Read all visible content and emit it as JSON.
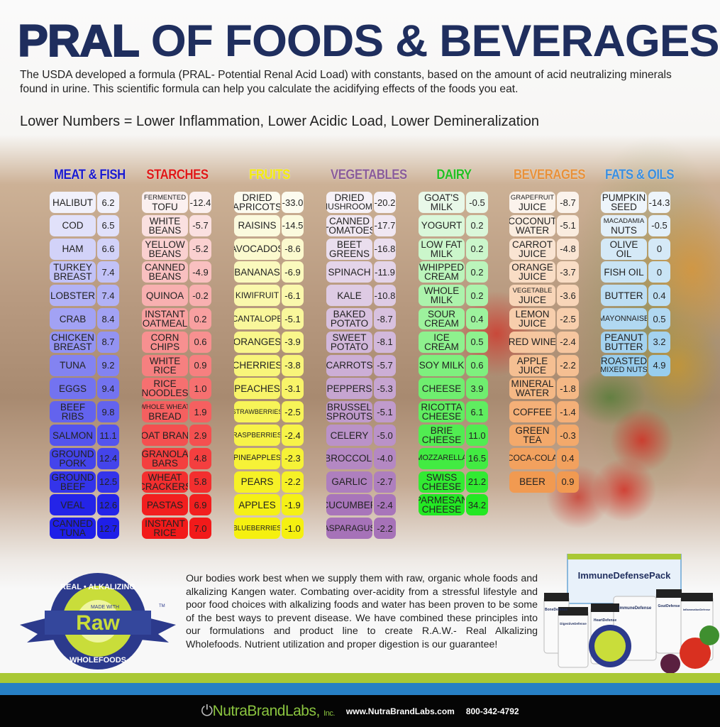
{
  "header": {
    "title_bold": "PRAL",
    "title_rest": "OF FOODS & BEVERAGES",
    "intro": "The USDA developed a formula (PRAL- Potential Renal Acid Load) with constants, based on the amount of acid neutralizing minerals found in urine. This scientific formula can help you calculate the acidifying effects of the foods you eat.",
    "tagline": "Lower Numbers = Lower Inflammation, Lower Acidic Load, Lower Demineralization"
  },
  "columns": [
    {
      "title": "MEAT & FISH",
      "title_color": "#1a1ad0",
      "light": "#f1f1fb",
      "dark": "#1f1fe8",
      "items": [
        {
          "name": "HALIBUT",
          "value": "6.2"
        },
        {
          "name": "COD",
          "value": "6.5"
        },
        {
          "name": "HAM",
          "value": "6.6"
        },
        {
          "name": "TURKEY\nBREAST",
          "value": "7.4"
        },
        {
          "name": "LOBSTER",
          "value": "7.4"
        },
        {
          "name": "CRAB",
          "value": "8.4"
        },
        {
          "name": "CHICKEN\nBREAST",
          "value": "8.7"
        },
        {
          "name": "TUNA",
          "value": "9.2"
        },
        {
          "name": "EGGS",
          "value": "9.4"
        },
        {
          "name": "BEEF\nRIBS",
          "value": "9.8"
        },
        {
          "name": "SALMON",
          "value": "11.1"
        },
        {
          "name": "GROUND\nPORK",
          "value": "12.4"
        },
        {
          "name": "GROUND\nBEEF",
          "value": "12.5"
        },
        {
          "name": "VEAL",
          "value": "12.6"
        },
        {
          "name": "CANNED\nTUNA",
          "value": "12.7"
        }
      ]
    },
    {
      "title": "STARCHES",
      "title_color": "#e01818",
      "light": "#fbf0f0",
      "dark": "#f21a1a",
      "items": [
        {
          "name": "FERMENTED\nTOFU",
          "value": "-12.4"
        },
        {
          "name": "WHITE\nBEANS",
          "value": "-5.7"
        },
        {
          "name": "YELLOW\nBEANS",
          "value": "-5.2"
        },
        {
          "name": "CANNED\nBEANS",
          "value": "-4.9"
        },
        {
          "name": "QUINOA",
          "value": "-0.2"
        },
        {
          "name": "INSTANT\nOATMEAL",
          "value": "0.2"
        },
        {
          "name": "CORN\nCHIPS",
          "value": "0.6"
        },
        {
          "name": "WHITE\nRICE",
          "value": "0.9"
        },
        {
          "name": "RICE\nNOODLES",
          "value": "1.0"
        },
        {
          "name": "WHOLE WHEAT\nBREAD",
          "value": "1.9"
        },
        {
          "name": "OAT BRAN",
          "value": "2.9"
        },
        {
          "name": "GRANOLA\nBARS",
          "value": "4.8"
        },
        {
          "name": "WHEAT\nCRACKERS",
          "value": "5.8"
        },
        {
          "name": "PASTAS",
          "value": "6.9"
        },
        {
          "name": "INSTANT\nRICE",
          "value": "7.0"
        }
      ]
    },
    {
      "title": "FRUITS",
      "title_color": "#f2ea10",
      "light": "#fcfbef",
      "dark": "#f5f010",
      "items": [
        {
          "name": "DRIED\nAPRICOTS",
          "value": "-33.0"
        },
        {
          "name": "RAISINS",
          "value": "-14.5"
        },
        {
          "name": "AVOCADOS",
          "value": "-8.6"
        },
        {
          "name": "BANANAS",
          "value": "-6.9"
        },
        {
          "name": "KIWIFRUIT",
          "value": "-6.1"
        },
        {
          "name": "CANTALOPE",
          "value": "-5.1"
        },
        {
          "name": "ORANGES",
          "value": "-3.9"
        },
        {
          "name": "CHERRIES",
          "value": "-3.8"
        },
        {
          "name": "PEACHES",
          "value": "-3.1"
        },
        {
          "name": "STRAWBERRIES",
          "value": "-2.5"
        },
        {
          "name": "RASPBERRIES",
          "value": "-2.4"
        },
        {
          "name": "PINEAPPLES",
          "value": "-2.3"
        },
        {
          "name": "PEARS",
          "value": "-2.2"
        },
        {
          "name": "APPLES",
          "value": "-1.9"
        },
        {
          "name": "BLUEBERRIES",
          "value": "-1.0"
        }
      ]
    },
    {
      "title": "VEGETABLES",
      "title_color": "#8a5c9a",
      "light": "#f6f1f7",
      "dark": "#a672b8",
      "items": [
        {
          "name": "DRIED\nMUSHROOMS",
          "value": "-20.2"
        },
        {
          "name": "CANNED\nTOMATOES",
          "value": "-17.7"
        },
        {
          "name": "BEET\nGREENS",
          "value": "-16.8"
        },
        {
          "name": "SPINACH",
          "value": "-11.9"
        },
        {
          "name": "KALE",
          "value": "-10.8"
        },
        {
          "name": "BAKED\nPOTATO",
          "value": "-8.7"
        },
        {
          "name": "SWEET\nPOTATO",
          "value": "-8.1"
        },
        {
          "name": "CARROTS",
          "value": "-5.7"
        },
        {
          "name": "PEPPERS",
          "value": "-5.3"
        },
        {
          "name": "BRUSSEL\nSPROUTS",
          "value": "-5.1"
        },
        {
          "name": "CELERY",
          "value": "-5.0"
        },
        {
          "name": "BROCCOLI",
          "value": "-4.0"
        },
        {
          "name": "GARLIC",
          "value": "-2.7"
        },
        {
          "name": "CUCUMBER",
          "value": "-2.4"
        },
        {
          "name": "ASPARAGUS",
          "value": "-2.2"
        }
      ]
    },
    {
      "title": "DAIRY",
      "title_color": "#22c022",
      "light": "#e9f8e9",
      "dark": "#1ee81e",
      "items": [
        {
          "name": "GOAT'S\nMILK",
          "value": "-0.5"
        },
        {
          "name": "YOGURT",
          "value": "0.2"
        },
        {
          "name": "LOW FAT\nMILK",
          "value": "0.2"
        },
        {
          "name": "WHIPPED\nCREAM",
          "value": "0.2"
        },
        {
          "name": "WHOLE\nMILK",
          "value": "0.2"
        },
        {
          "name": "SOUR\nCREAM",
          "value": "0.4"
        },
        {
          "name": "ICE\nCREAM",
          "value": "0.5"
        },
        {
          "name": "SOY MILK",
          "value": "0.6"
        },
        {
          "name": "CHEESE",
          "value": "3.9"
        },
        {
          "name": "RICOTTA\nCHEESE",
          "value": "6.1"
        },
        {
          "name": "BRIE\nCHEESE",
          "value": "11.0"
        },
        {
          "name": "MOZZARELLA",
          "value": "16.5"
        },
        {
          "name": "SWISS\nCHEESE",
          "value": "21.2"
        },
        {
          "name": "PARMESAN\nCHEESE",
          "value": "34.2"
        }
      ]
    },
    {
      "title": "BEVERAGES",
      "title_color": "#e8913a",
      "light": "#fbf3ec",
      "dark": "#f09040",
      "items": [
        {
          "name": "GRAPEFRUIT\nJUICE",
          "value": "-8.7"
        },
        {
          "name": "COCONUT\nWATER",
          "value": "-5.1"
        },
        {
          "name": "CARROT\nJUICE",
          "value": "-4.8"
        },
        {
          "name": "ORANGE\nJUICE",
          "value": "-3.7"
        },
        {
          "name": "VEGETABLE\nJUICE",
          "value": "-3.6"
        },
        {
          "name": "LEMON\nJUICE",
          "value": "-2.5"
        },
        {
          "name": "RED WINE",
          "value": "-2.4"
        },
        {
          "name": "APPLE\nJUICE",
          "value": "-2.2"
        },
        {
          "name": "MINERAL\nWATER",
          "value": "-1.8"
        },
        {
          "name": "COFFEE",
          "value": "-1.4"
        },
        {
          "name": "GREEN\nTEA",
          "value": "-0.3"
        },
        {
          "name": "COCA-COLA",
          "value": "0.4"
        },
        {
          "name": "BEER",
          "value": "0.9"
        }
      ]
    },
    {
      "title": "FATS & OILS",
      "title_color": "#3b8fe0",
      "light": "#eef5fb",
      "dark": "#4aa8e0",
      "items": [
        {
          "name": "PUMPKIN\nSEED",
          "value": "-14.3"
        },
        {
          "name": "MACADAMIA\nNUTS",
          "value": "-0.5"
        },
        {
          "name": "OLIVE\nOIL",
          "value": "0"
        },
        {
          "name": "FISH OIL",
          "value": "0"
        },
        {
          "name": "BUTTER",
          "value": "0.4"
        },
        {
          "name": "MAYONNAISE",
          "value": "0.5"
        },
        {
          "name": "PEANUT\nBUTTER",
          "value": "3.2"
        },
        {
          "name": "ROASTED\nMIXED NUTS",
          "value": "4.9"
        }
      ]
    }
  ],
  "story": "Our bodies work best when we supply them with raw, organic whole foods and alkalizing Kangen water. Combating over-acidity from a stressful lifestyle and poor food choices with alkalizing foods and water has been proven to be some of the best ways to prevent disease. We have combined these principles into our formulations and product line to create R.A.W.- Real Alkalizing Wholefoods. Nutrient utilization and proper digestion is our guarantee!",
  "logo": {
    "top": "REAL • ALKALIZING",
    "made_with": "MADE WITH",
    "word": "Raw",
    "bottom": "WHOLEFOODS",
    "tm": "TM"
  },
  "products": {
    "box": "ImmuneDefensePack",
    "bottles": [
      "BoneDefense",
      "DigestiveDefense",
      "HeartDefense",
      "ImmuneDefense",
      "GoutDefense",
      "InflammationDefense"
    ]
  },
  "footer": {
    "brand": "NutraBrandLabs,",
    "brand_suffix": "Inc.",
    "website": "www.NutraBrandLabs.com",
    "phone": "800-342-4792"
  },
  "colors": {
    "title": "#1f2e5e",
    "stripe_green": "#a9c835",
    "stripe_blue": "#2780c4",
    "footer_bg": "#050505"
  }
}
